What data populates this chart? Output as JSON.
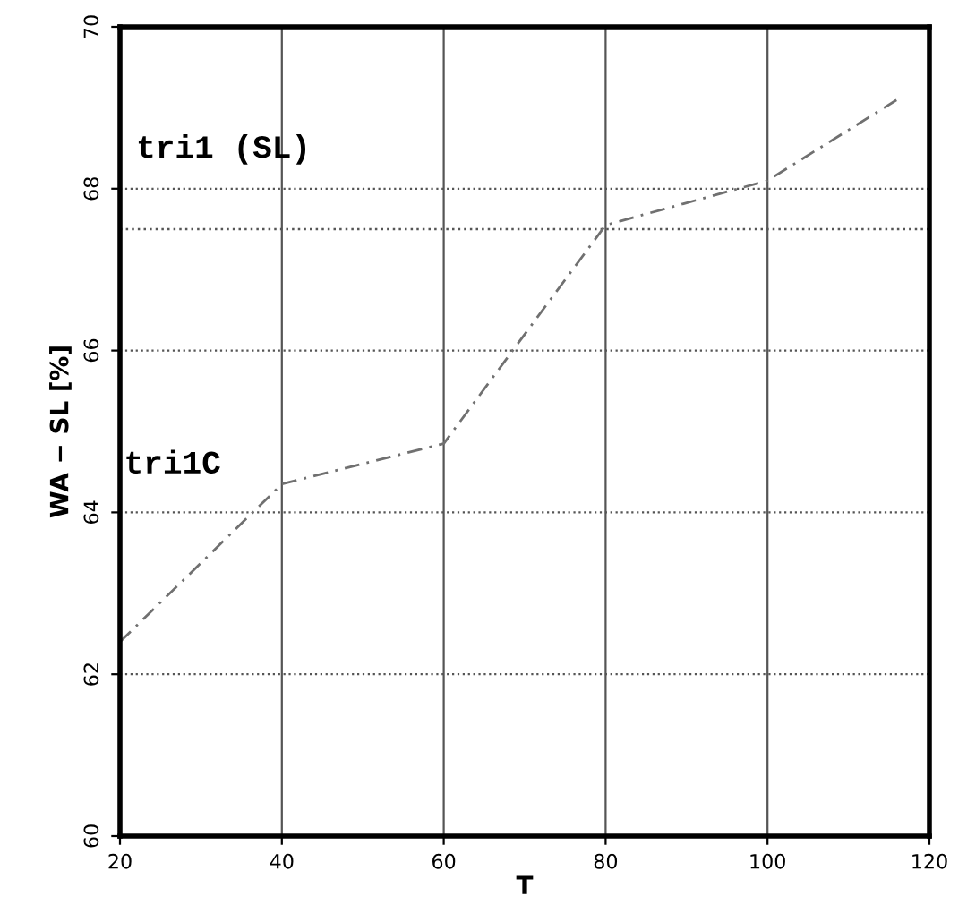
{
  "chart_data": {
    "type": "line",
    "xlabel": "T",
    "ylabel": "WA − SL [%]",
    "x": [
      20,
      40,
      60,
      80,
      100,
      116
    ],
    "series": [
      {
        "name": "tri1C",
        "color": "#707070",
        "values": [
          62.4,
          64.35,
          64.85,
          67.55,
          68.1,
          69.1
        ]
      }
    ],
    "xlim": [
      20,
      120
    ],
    "xticks": [
      20,
      40,
      60,
      80,
      100,
      120
    ],
    "ylim": [
      60,
      70
    ],
    "yticks": [
      60,
      62,
      64,
      66,
      68,
      70
    ],
    "grid": true,
    "line_style": "dashed",
    "marker": "none",
    "ref_lines": [
      {
        "axis": "y",
        "value": 67.5,
        "label": "tri1 (SL)",
        "color": "#555555",
        "line_style": "dotted"
      }
    ]
  }
}
